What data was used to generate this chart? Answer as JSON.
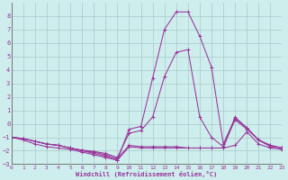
{
  "xlabel": "Windchill (Refroidissement éolien,°C)",
  "background_color": "#ceeeed",
  "grid_color": "#a8caca",
  "line_color": "#993399",
  "xlim": [
    0,
    23
  ],
  "ylim": [
    -3,
    9
  ],
  "yticks": [
    -3,
    -2,
    -1,
    0,
    1,
    2,
    3,
    4,
    5,
    6,
    7,
    8
  ],
  "xticks": [
    0,
    1,
    2,
    3,
    4,
    5,
    6,
    7,
    8,
    9,
    10,
    11,
    12,
    13,
    14,
    15,
    16,
    17,
    18,
    19,
    20,
    21,
    22,
    23
  ],
  "lines": [
    [
      -1.0,
      -1.2,
      -1.5,
      -1.7,
      -1.8,
      -1.9,
      -2.1,
      -2.3,
      -2.5,
      -2.7,
      -0.4,
      -0.2,
      3.4,
      7.0,
      8.3,
      8.3,
      6.5,
      4.2,
      -1.5,
      0.4,
      -0.3,
      -1.2,
      -1.6,
      -1.8
    ],
    [
      -1.0,
      -1.1,
      -1.3,
      -1.5,
      -1.6,
      -1.8,
      -1.95,
      -2.05,
      -2.2,
      -2.5,
      -0.7,
      -0.5,
      0.5,
      3.5,
      5.3,
      5.5,
      0.5,
      -1.0,
      -1.7,
      0.3,
      -0.4,
      -1.2,
      -1.6,
      -1.8
    ],
    [
      -1.0,
      -1.1,
      -1.3,
      -1.5,
      -1.6,
      -1.8,
      -2.0,
      -2.1,
      -2.3,
      -2.6,
      -1.6,
      -1.7,
      -1.7,
      -1.7,
      -1.7,
      -1.8,
      -1.8,
      -1.8,
      -1.8,
      -1.6,
      -0.6,
      -1.5,
      -1.8,
      -1.9
    ],
    [
      -1.0,
      -1.1,
      -1.3,
      -1.5,
      -1.6,
      -1.8,
      -2.0,
      -2.2,
      -2.4,
      -2.7,
      -1.7,
      -1.8,
      -1.8,
      -1.8,
      -1.8,
      -1.8,
      -1.8,
      -1.8,
      -1.8,
      0.5,
      -0.3,
      -1.2,
      -1.7,
      -1.8
    ]
  ]
}
